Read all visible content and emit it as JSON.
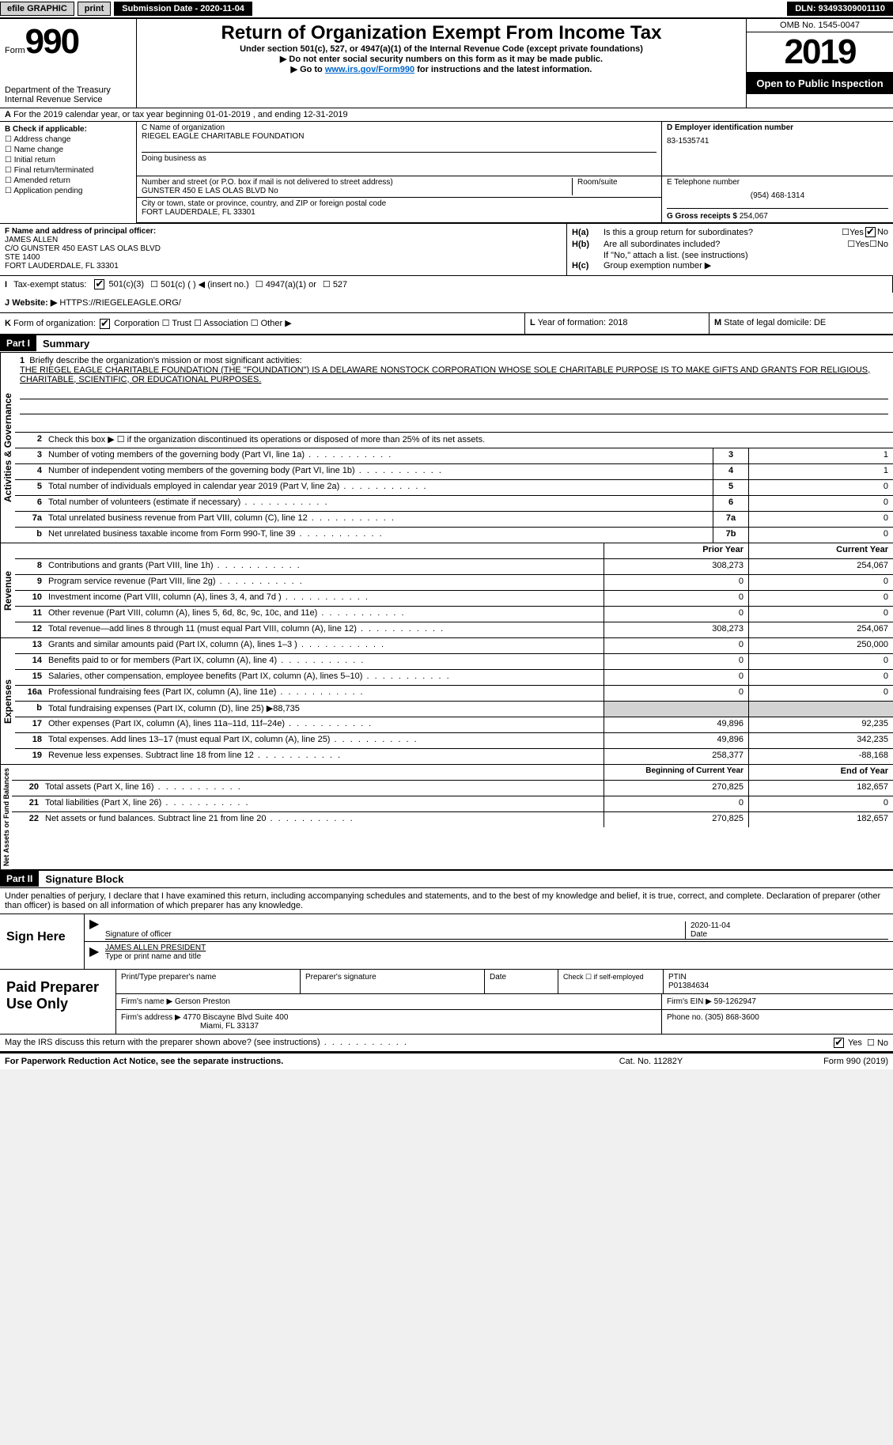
{
  "topbar": {
    "efile": "efile GRAPHIC",
    "print": "print",
    "submission": "Submission Date - 2020-11-04",
    "dln": "DLN: 93493309001110"
  },
  "header": {
    "form_label": "Form",
    "form_num": "990",
    "dept": "Department of the Treasury\nInternal Revenue Service",
    "title": "Return of Organization Exempt From Income Tax",
    "subtitle": "Under section 501(c), 527, or 4947(a)(1) of the Internal Revenue Code (except private foundations)",
    "note1": "▶ Do not enter social security numbers on this form as it may be made public.",
    "note2_pre": "▶ Go to ",
    "note2_link": "www.irs.gov/Form990",
    "note2_post": " for instructions and the latest information.",
    "omb": "OMB No. 1545-0047",
    "year": "2019",
    "open": "Open to Public Inspection"
  },
  "rowA": {
    "pre": "A",
    "text": "For the 2019 calendar year, or tax year beginning 01-01-2019   , and ending 12-31-2019"
  },
  "boxB": {
    "header": "B Check if applicable:",
    "items": [
      "Address change",
      "Name change",
      "Initial return",
      "Final return/terminated",
      "Amended return",
      "Application pending"
    ]
  },
  "boxC": {
    "label": "C Name of organization",
    "name": "RIEGEL EAGLE CHARITABLE FOUNDATION",
    "dba_label": "Doing business as",
    "addr_label": "Number and street (or P.O. box if mail is not delivered to street address)",
    "addr": "GUNSTER 450 E LAS OLAS BLVD No",
    "suite_label": "Room/suite",
    "city_label": "City or town, state or province, country, and ZIP or foreign postal code",
    "city": "FORT LAUDERDALE, FL  33301"
  },
  "boxD": {
    "label": "D Employer identification number",
    "ein": "83-1535741"
  },
  "boxE": {
    "label": "E Telephone number",
    "phone": "(954) 468-1314"
  },
  "boxG": {
    "label": "G Gross receipts $",
    "val": "254,067"
  },
  "boxF": {
    "label": "F Name and address of principal officer:",
    "name": "JAMES ALLEN",
    "addr1": "C/O GUNSTER 450 EAST LAS OLAS BLVD",
    "addr2": "STE 1400",
    "addr3": "FORT LAUDERDALE, FL  33301"
  },
  "boxH": {
    "ha_label": "H(a)",
    "ha_text": "Is this a group return for subordinates?",
    "hb_label": "H(b)",
    "hb_text": "Are all subordinates included?",
    "hb_note": "If \"No,\" attach a list. (see instructions)",
    "hc_label": "H(c)",
    "hc_text": "Group exemption number ▶",
    "yes": "Yes",
    "no": "No"
  },
  "boxI": {
    "label": "I",
    "text": "Tax-exempt status:",
    "o1": "501(c)(3)",
    "o2": "501(c) (   ) ◀ (insert no.)",
    "o3": "4947(a)(1) or",
    "o4": "527"
  },
  "boxJ": {
    "label": "J",
    "text": "Website: ▶",
    "url": "HTTPS://RIEGELEAGLE.ORG/"
  },
  "boxK": {
    "label": "K",
    "text": "Form of organization:",
    "o1": "Corporation",
    "o2": "Trust",
    "o3": "Association",
    "o4": "Other ▶"
  },
  "boxL": {
    "label": "L",
    "text": "Year of formation: 2018"
  },
  "boxM": {
    "label": "M",
    "text": "State of legal domicile: DE"
  },
  "part1": {
    "hdr": "Part I",
    "title": "Summary"
  },
  "mission": {
    "num": "1",
    "label": "Briefly describe the organization's mission or most significant activities:",
    "text": "THE RIEGEL EAGLE CHARITABLE FOUNDATION (THE \"FOUNDATION\") IS A DELAWARE NONSTOCK CORPORATION WHOSE SOLE CHARITABLE PURPOSE IS TO MAKE GIFTS AND GRANTS FOR RELIGIOUS, CHARITABLE, SCIENTIFIC, OR EDUCATIONAL PURPOSES."
  },
  "gov_lines": [
    {
      "num": "2",
      "desc": "Check this box ▶ ☐ if the organization discontinued its operations or disposed of more than 25% of its net assets.",
      "box": "",
      "val": ""
    },
    {
      "num": "3",
      "desc": "Number of voting members of the governing body (Part VI, line 1a)",
      "box": "3",
      "val": "1"
    },
    {
      "num": "4",
      "desc": "Number of independent voting members of the governing body (Part VI, line 1b)",
      "box": "4",
      "val": "1"
    },
    {
      "num": "5",
      "desc": "Total number of individuals employed in calendar year 2019 (Part V, line 2a)",
      "box": "5",
      "val": "0"
    },
    {
      "num": "6",
      "desc": "Total number of volunteers (estimate if necessary)",
      "box": "6",
      "val": "0"
    },
    {
      "num": "7a",
      "desc": "Total unrelated business revenue from Part VIII, column (C), line 12",
      "box": "7a",
      "val": "0"
    },
    {
      "num": "b",
      "desc": "Net unrelated business taxable income from Form 990-T, line 39",
      "box": "7b",
      "val": "0"
    }
  ],
  "col_hdrs": {
    "prior": "Prior Year",
    "current": "Current Year"
  },
  "rev_lines": [
    {
      "num": "8",
      "desc": "Contributions and grants (Part VIII, line 1h)",
      "prior": "308,273",
      "curr": "254,067"
    },
    {
      "num": "9",
      "desc": "Program service revenue (Part VIII, line 2g)",
      "prior": "0",
      "curr": "0"
    },
    {
      "num": "10",
      "desc": "Investment income (Part VIII, column (A), lines 3, 4, and 7d )",
      "prior": "0",
      "curr": "0"
    },
    {
      "num": "11",
      "desc": "Other revenue (Part VIII, column (A), lines 5, 6d, 8c, 9c, 10c, and 11e)",
      "prior": "0",
      "curr": "0"
    },
    {
      "num": "12",
      "desc": "Total revenue—add lines 8 through 11 (must equal Part VIII, column (A), line 12)",
      "prior": "308,273",
      "curr": "254,067"
    }
  ],
  "exp_lines": [
    {
      "num": "13",
      "desc": "Grants and similar amounts paid (Part IX, column (A), lines 1–3 )",
      "prior": "0",
      "curr": "250,000"
    },
    {
      "num": "14",
      "desc": "Benefits paid to or for members (Part IX, column (A), line 4)",
      "prior": "0",
      "curr": "0"
    },
    {
      "num": "15",
      "desc": "Salaries, other compensation, employee benefits (Part IX, column (A), lines 5–10)",
      "prior": "0",
      "curr": "0"
    },
    {
      "num": "16a",
      "desc": "Professional fundraising fees (Part IX, column (A), line 11e)",
      "prior": "0",
      "curr": "0"
    },
    {
      "num": "b",
      "desc": "Total fundraising expenses (Part IX, column (D), line 25) ▶88,735",
      "prior": "",
      "curr": "",
      "shade": true
    },
    {
      "num": "17",
      "desc": "Other expenses (Part IX, column (A), lines 11a–11d, 11f–24e)",
      "prior": "49,896",
      "curr": "92,235"
    },
    {
      "num": "18",
      "desc": "Total expenses. Add lines 13–17 (must equal Part IX, column (A), line 25)",
      "prior": "49,896",
      "curr": "342,235"
    },
    {
      "num": "19",
      "desc": "Revenue less expenses. Subtract line 18 from line 12",
      "prior": "258,377",
      "curr": "-88,168"
    }
  ],
  "bal_hdrs": {
    "begin": "Beginning of Current Year",
    "end": "End of Year"
  },
  "bal_lines": [
    {
      "num": "20",
      "desc": "Total assets (Part X, line 16)",
      "prior": "270,825",
      "curr": "182,657"
    },
    {
      "num": "21",
      "desc": "Total liabilities (Part X, line 26)",
      "prior": "0",
      "curr": "0"
    },
    {
      "num": "22",
      "desc": "Net assets or fund balances. Subtract line 21 from line 20",
      "prior": "270,825",
      "curr": "182,657"
    }
  ],
  "labels": {
    "gov": "Activities & Governance",
    "rev": "Revenue",
    "exp": "Expenses",
    "bal": "Net Assets or Fund Balances"
  },
  "part2": {
    "hdr": "Part II",
    "title": "Signature Block",
    "decl": "Under penalties of perjury, I declare that I have examined this return, including accompanying schedules and statements, and to the best of my knowledge and belief, it is true, correct, and complete. Declaration of preparer (other than officer) is based on all information of which preparer has any knowledge."
  },
  "sign": {
    "here": "Sign Here",
    "sig_label": "Signature of officer",
    "date_label": "Date",
    "date": "2020-11-04",
    "name": "JAMES ALLEN  PRESIDENT",
    "name_label": "Type or print name and title"
  },
  "paid": {
    "label": "Paid Preparer Use Only",
    "h1": "Print/Type preparer's name",
    "h2": "Preparer's signature",
    "h3": "Date",
    "h4": "Check ☐ if self-employed",
    "h5": "PTIN",
    "ptin": "P01384634",
    "firm_label": "Firm's name    ▶",
    "firm": "Gerson Preston",
    "ein_label": "Firm's EIN ▶",
    "ein": "59-1262947",
    "addr_label": "Firm's address ▶",
    "addr1": "4770 Biscayne Blvd Suite 400",
    "addr2": "Miami, FL  33137",
    "phone_label": "Phone no.",
    "phone": "(305) 868-3600"
  },
  "discuss": {
    "text": "May the IRS discuss this return with the preparer shown above? (see instructions)",
    "yes": "Yes",
    "no": "No"
  },
  "footer": {
    "left": "For Paperwork Reduction Act Notice, see the separate instructions.",
    "center": "Cat. No. 11282Y",
    "right": "Form 990 (2019)"
  }
}
